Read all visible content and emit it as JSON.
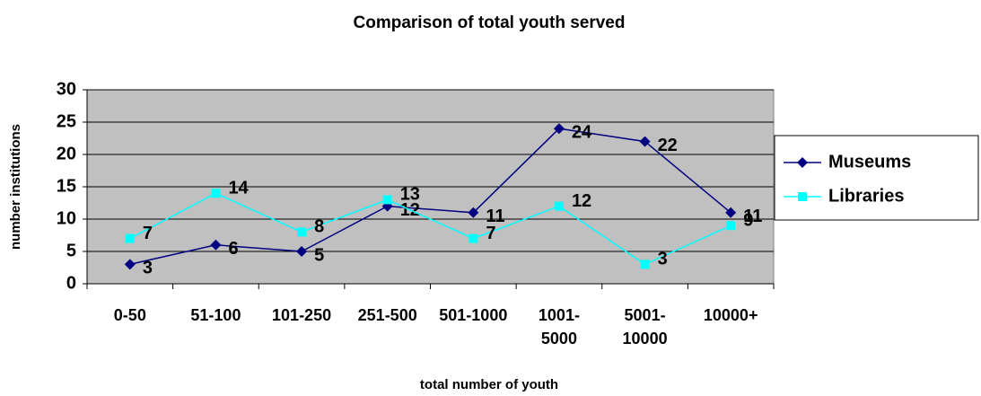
{
  "chart_data": {
    "type": "line",
    "title": "Comparison of total youth served",
    "x_label": "total number of youth",
    "y_label": "number institutions",
    "categories": [
      "0-50",
      "51-100",
      "101-250",
      "251-500",
      "501-1000",
      "1001-5000",
      "5001-10000",
      "10000+"
    ],
    "series": [
      {
        "name": "Museums",
        "color": "#000080",
        "marker": "diamond",
        "values": [
          3,
          6,
          5,
          12,
          11,
          24,
          22,
          11
        ]
      },
      {
        "name": "Libraries",
        "color": "#00ffff",
        "marker": "square",
        "values": [
          7,
          14,
          8,
          13,
          7,
          12,
          3,
          9
        ]
      }
    ],
    "ylim": [
      0,
      30
    ],
    "yticks": [
      0,
      5,
      10,
      15,
      20,
      25,
      30
    ],
    "grid": true,
    "legend": "right",
    "plot_background": "#c0c0c0"
  }
}
